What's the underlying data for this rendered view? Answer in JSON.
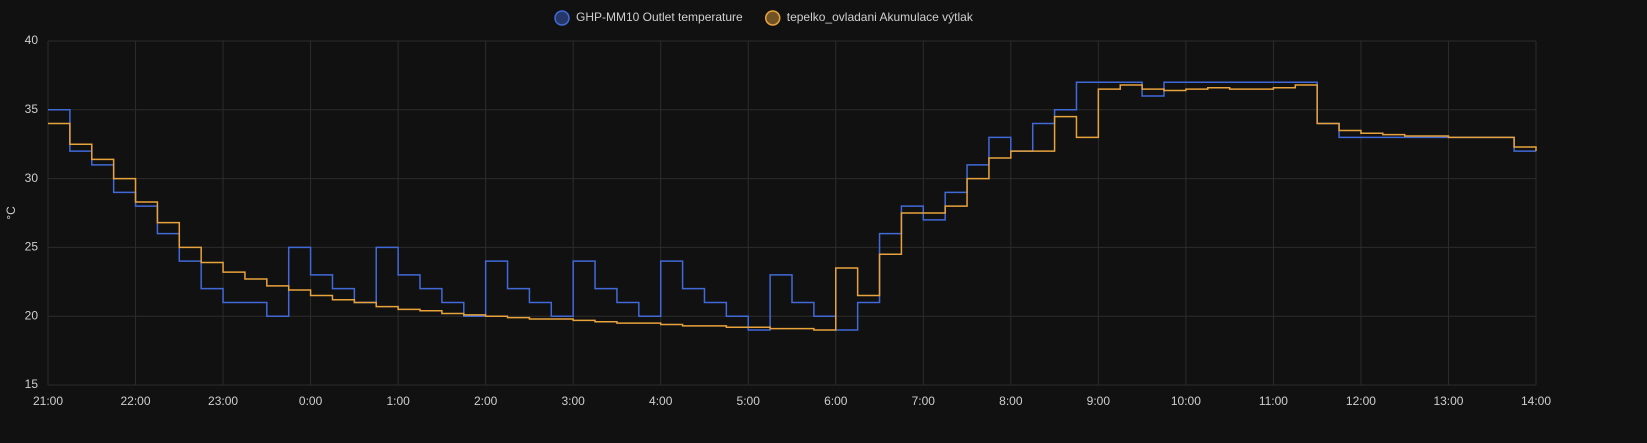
{
  "chart_data": {
    "type": "line",
    "line_shape": "step",
    "ylabel": "°C",
    "x": [
      0,
      0.25,
      0.5,
      0.75,
      1,
      1.25,
      1.5,
      1.75,
      2,
      2.25,
      2.5,
      2.75,
      3,
      3.25,
      3.5,
      3.75,
      4,
      4.25,
      4.5,
      4.75,
      5,
      5.25,
      5.5,
      5.75,
      6,
      6.25,
      6.5,
      6.75,
      7,
      7.25,
      7.5,
      7.75,
      8,
      8.25,
      8.5,
      8.75,
      9,
      9.25,
      9.5,
      9.75,
      10,
      10.25,
      10.5,
      10.75,
      11,
      11.25,
      11.5,
      11.75,
      12,
      12.25,
      12.5,
      12.75,
      13,
      13.25,
      13.5,
      13.75,
      14,
      14.25,
      14.5,
      14.75,
      15,
      15.25,
      15.5,
      15.75,
      16,
      16.25,
      16.5,
      16.75,
      17
    ],
    "series": [
      {
        "name": "GHP-MM10 Outlet temperature",
        "color": "#4169d8",
        "values": [
          35,
          32,
          31,
          29,
          28,
          26,
          24,
          22,
          21,
          21,
          20,
          25,
          23,
          22,
          21,
          25,
          23,
          22,
          21,
          20,
          24,
          22,
          21,
          20,
          24,
          22,
          21,
          20,
          24,
          22,
          21,
          20,
          19,
          23,
          21,
          20,
          19,
          21,
          26,
          28,
          27,
          29,
          31,
          33,
          32,
          34,
          35,
          37,
          37,
          37,
          36,
          37,
          37,
          37,
          37,
          37,
          37,
          37,
          34,
          33,
          33,
          33,
          33,
          33,
          33,
          33,
          33,
          32,
          32
        ]
      },
      {
        "name": "tepelko_ovladani Akumulace výtlak",
        "color": "#e8a33d",
        "values": [
          34,
          32.5,
          31.4,
          30,
          28.3,
          26.8,
          25,
          23.9,
          23.2,
          22.7,
          22.2,
          21.9,
          21.5,
          21.2,
          21,
          20.7,
          20.5,
          20.4,
          20.2,
          20.1,
          20,
          19.9,
          19.8,
          19.8,
          19.7,
          19.6,
          19.5,
          19.5,
          19.4,
          19.3,
          19.3,
          19.2,
          19.2,
          19.1,
          19.1,
          19,
          23.5,
          21.5,
          24.5,
          27.5,
          27.5,
          28,
          30,
          31.5,
          32,
          32,
          34.5,
          33,
          36.5,
          36.8,
          36.5,
          36.4,
          36.5,
          36.6,
          36.5,
          36.5,
          36.6,
          36.8,
          34,
          33.5,
          33.3,
          33.2,
          33.1,
          33.1,
          33,
          33,
          33,
          32.3,
          32
        ]
      }
    ],
    "xlim": [
      0,
      17
    ],
    "xticks": [
      {
        "value": 0,
        "label": "21:00"
      },
      {
        "value": 1,
        "label": "22:00"
      },
      {
        "value": 2,
        "label": "23:00"
      },
      {
        "value": 3,
        "label": "0:00"
      },
      {
        "value": 4,
        "label": "1:00"
      },
      {
        "value": 5,
        "label": "2:00"
      },
      {
        "value": 6,
        "label": "3:00"
      },
      {
        "value": 7,
        "label": "4:00"
      },
      {
        "value": 8,
        "label": "5:00"
      },
      {
        "value": 9,
        "label": "6:00"
      },
      {
        "value": 10,
        "label": "7:00"
      },
      {
        "value": 11,
        "label": "8:00"
      },
      {
        "value": 12,
        "label": "9:00"
      },
      {
        "value": 13,
        "label": "10:00"
      },
      {
        "value": 14,
        "label": "11:00"
      },
      {
        "value": 15,
        "label": "12:00"
      },
      {
        "value": 16,
        "label": "13:00"
      },
      {
        "value": 17,
        "label": "14:00"
      }
    ],
    "ylim": [
      15,
      40
    ],
    "yticks": [
      15,
      20,
      25,
      30,
      35,
      40
    ],
    "grid": true,
    "legend": "top"
  }
}
